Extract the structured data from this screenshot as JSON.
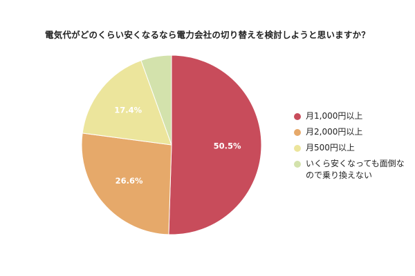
{
  "chart_data": {
    "type": "pie",
    "title": "電気代がどのくらい安くなるなら電力会社の切り替えを検討しようと思いますか？",
    "categories": [
      "月1,000円以上",
      "月2,000円以上",
      "月500円以上",
      "いくら安くなっても面倒なので乗り換えない"
    ],
    "legend_lines": [
      [
        "月1,000円以上"
      ],
      [
        "月2,000円以上"
      ],
      [
        "月500円以上"
      ],
      [
        "いくら安くなっても面倒な",
        "ので乗り換えない"
      ]
    ],
    "values": [
      50.5,
      26.6,
      17.4,
      5.5
    ],
    "data_labels": [
      "50.5%",
      "26.6%",
      "17.4%",
      ""
    ],
    "colors": [
      "#c84c5b",
      "#e6a96a",
      "#ece59c",
      "#d3e2ac"
    ],
    "legend_position": "right"
  }
}
